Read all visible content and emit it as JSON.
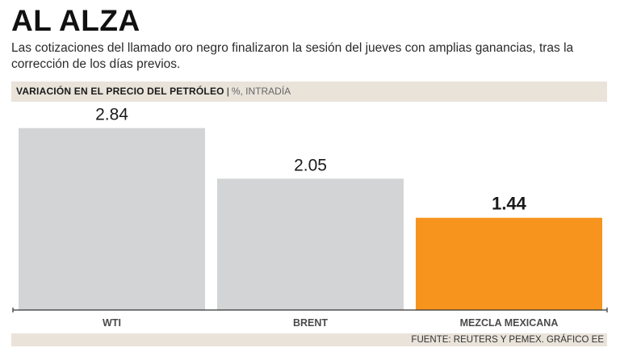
{
  "header": {
    "title": "AL ALZA",
    "subtitle": "Las cotizaciones del llamado oro negro finalizaron la sesión del jueves con amplias ganancias, tras la corrección de los días previos."
  },
  "band": {
    "title": "VARIACIÓN EN EL PRECIO DEL PETRÓLEO",
    "separator": "|",
    "unit": "%, INTRADÍA"
  },
  "footer": {
    "source": "FUENTE: REUTERS Y PEMEX. GRÁFICO EE"
  },
  "colors": {
    "bar_default": "#d3d4d6",
    "bar_highlight": "#f7941e",
    "axis": "#333333"
  },
  "chart_data": {
    "type": "bar",
    "title": "VARIACIÓN EN EL PRECIO DEL PETRÓLEO",
    "unit": "%, INTRADÍA",
    "categories": [
      "WTI",
      "BRENT",
      "MEZCLA MEXICANA"
    ],
    "values": [
      2.84,
      2.05,
      1.44
    ],
    "value_labels": [
      "2.84",
      "2.05",
      "1.44"
    ],
    "highlight_index": 2,
    "ylim": [
      0,
      3.1
    ],
    "xlabel": "",
    "ylabel": "",
    "grid": false
  }
}
